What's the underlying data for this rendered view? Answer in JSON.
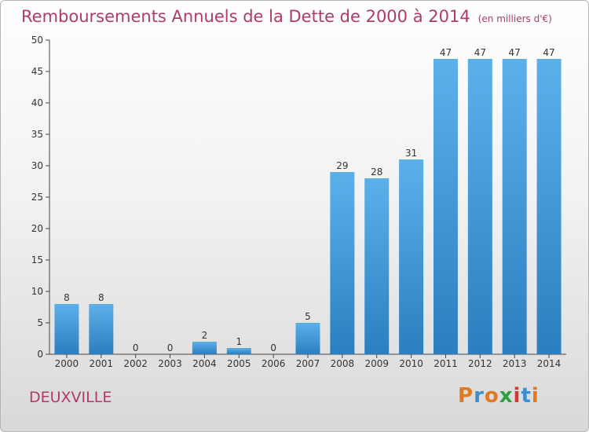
{
  "chart_data": {
    "type": "bar",
    "title": "Remboursements Annuels de la Dette de 2000 à 2014",
    "subtitle": "(en milliers d'€)",
    "categories": [
      "2000",
      "2001",
      "2002",
      "2003",
      "2004",
      "2005",
      "2006",
      "2007",
      "2008",
      "2009",
      "2010",
      "2011",
      "2012",
      "2013",
      "2014"
    ],
    "values": [
      8,
      8,
      0,
      0,
      2,
      1,
      0,
      5,
      29,
      28,
      31,
      47,
      47,
      47,
      47
    ],
    "ylim": [
      0,
      50
    ],
    "yticks": [
      0,
      5,
      10,
      15,
      20,
      25,
      30,
      35,
      40,
      45,
      50
    ],
    "xlabel": "",
    "ylabel": "",
    "bar_color": "#4a9fde",
    "grid": false
  },
  "footer": {
    "town": "DEUXVILLE",
    "logo_text": "Proxiti",
    "logo_colors": [
      "#e07a1f",
      "#3a8fd0",
      "#e07a1f",
      "#2e9e3e",
      "#d23a3a",
      "#3a8fd0",
      "#e07a1f"
    ]
  }
}
